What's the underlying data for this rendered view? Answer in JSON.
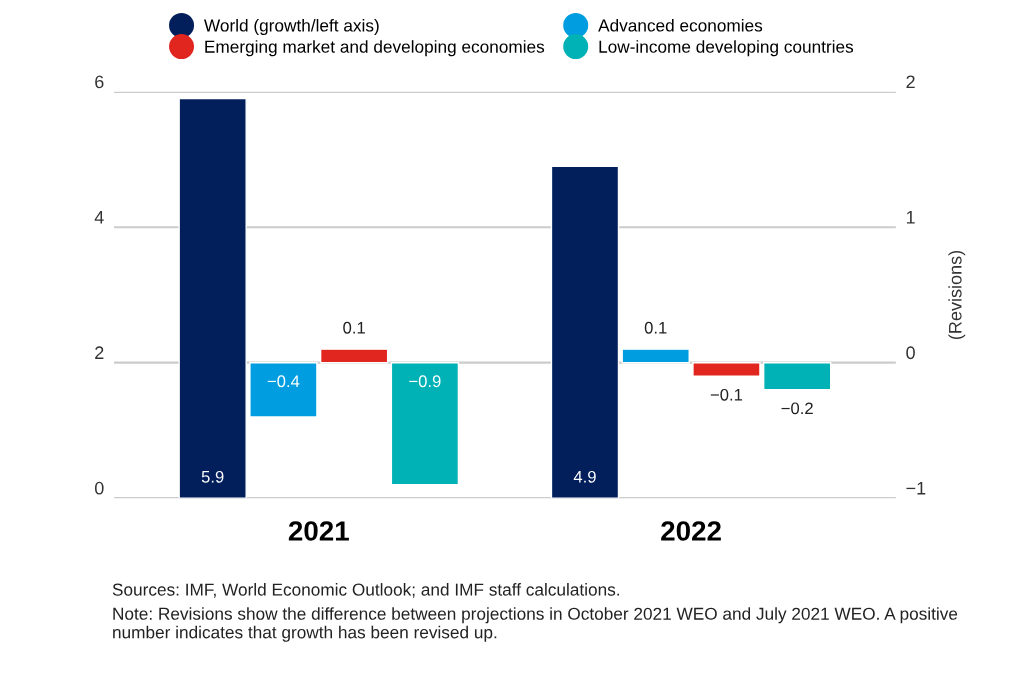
{
  "chart_data": {
    "type": "bar",
    "categories": [
      "2021",
      "2022"
    ],
    "series": [
      {
        "name": "World (growth/left axis)",
        "color": "#021f5c",
        "values": [
          5.9,
          4.9
        ]
      },
      {
        "name": "Advanced economies",
        "color": "#009ee0",
        "values": [
          -0.4,
          0.1
        ],
        "axis": "y2"
      },
      {
        "name": "Emerging market and developing economies",
        "color": "#e0261f",
        "values": [
          0.1,
          -0.1
        ],
        "axis": "y2"
      },
      {
        "name": "Low-income developing countries",
        "color": "#00b1b5",
        "values": [
          -0.9,
          -0.2
        ],
        "axis": "y2"
      }
    ],
    "ylim": [
      0,
      6
    ],
    "yticks": [
      0,
      2,
      4,
      6
    ],
    "y2lim": [
      -1,
      2
    ],
    "y2ticks": [
      -1,
      0,
      1,
      2
    ],
    "y2label": "(Revisions)",
    "data_labels": true,
    "grid": "y",
    "legend": "top",
    "marker": "circle",
    "annotations": [
      "Sources: IMF, World Economic Outlook; and IMF staff calculations.",
      "Note: Revisions show the difference between projections in October 2021 WEO and July 2021 WEO. A positive number indicates that growth has been revised up."
    ]
  }
}
